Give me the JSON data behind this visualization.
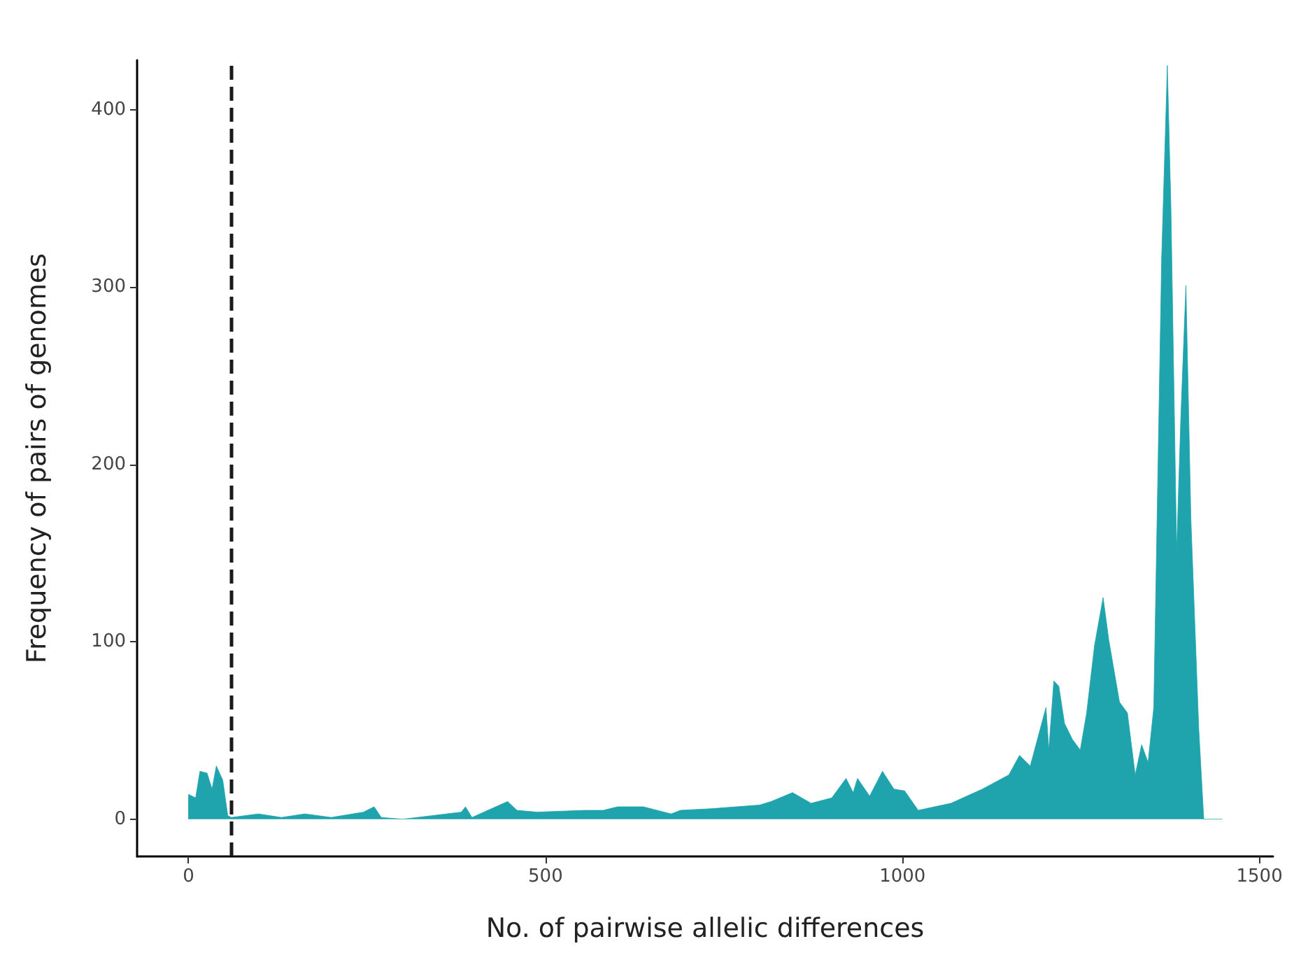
{
  "chart_data": {
    "type": "area",
    "xlabel": "No. of pairwise allelic differences",
    "ylabel": "Frequency of pairs of genomes",
    "x": [
      0,
      0,
      10,
      16,
      26,
      33,
      39,
      48,
      55,
      60,
      98,
      130,
      163,
      200,
      245,
      260,
      270,
      300,
      382,
      388,
      397,
      447,
      460,
      488,
      555,
      581,
      601,
      637,
      676,
      689,
      735,
      800,
      816,
      846,
      872,
      901,
      921,
      931,
      937,
      954,
      972,
      988,
      1003,
      1022,
      1068,
      1112,
      1149,
      1164,
      1179,
      1201,
      1205,
      1212,
      1219,
      1227,
      1238,
      1249,
      1258,
      1269,
      1281,
      1289,
      1304,
      1315,
      1326,
      1335,
      1344,
      1352,
      1363,
      1371,
      1376,
      1384,
      1390,
      1397,
      1404,
      1415,
      1422,
      1448
    ],
    "series": [
      {
        "color": "#1fa3ad",
        "values": [
          0,
          14,
          12,
          27,
          26,
          17,
          30,
          22,
          2,
          1,
          3,
          1,
          3,
          1,
          4,
          7,
          1,
          0,
          4,
          7,
          1,
          10,
          5,
          4,
          5,
          5,
          7,
          7,
          3,
          5,
          6,
          8,
          10,
          15,
          9,
          12,
          23,
          15,
          23,
          13,
          27,
          17,
          16,
          5,
          9,
          17,
          25,
          36,
          30,
          63,
          39,
          78,
          75,
          54,
          45,
          39,
          60,
          98,
          125,
          101,
          66,
          60,
          25,
          42,
          32,
          63,
          316,
          425,
          345,
          151,
          228,
          301,
          169,
          51,
          0,
          0
        ]
      }
    ],
    "xlim": [
      -72,
      1519
    ],
    "xticks": [
      0,
      500,
      1000,
      1500
    ],
    "ylim": [
      -21,
      428
    ],
    "yticks": [
      0,
      100,
      200,
      300,
      400
    ],
    "ref_lines": [
      {
        "axis": "x",
        "value": 60,
        "color": "#1a1a1a",
        "line_style": "dashed"
      }
    ],
    "grid": false
  }
}
